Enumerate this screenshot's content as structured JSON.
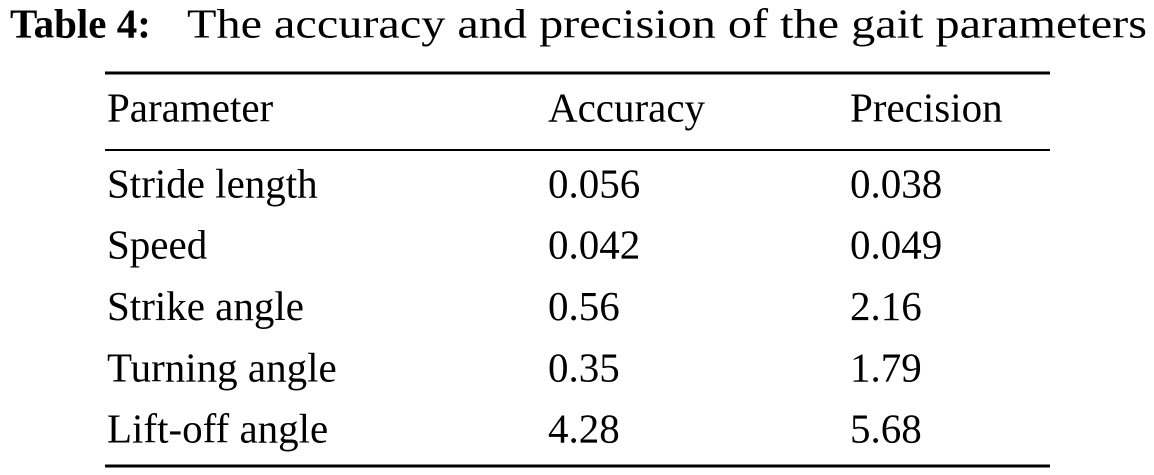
{
  "caption": {
    "label": "Table 4:",
    "text": "The accuracy and precision of the gait parameters"
  },
  "table": {
    "header": [
      "Parameter",
      "Accuracy",
      "Precision"
    ],
    "rows": [
      [
        "Stride length",
        "0.056",
        "0.038"
      ],
      [
        "Speed",
        "0.042",
        "0.049"
      ],
      [
        "Strike angle",
        "0.56",
        "2.16"
      ],
      [
        "Turning angle",
        "0.35",
        "1.79"
      ],
      [
        "Lift-off angle",
        "4.28",
        "5.68"
      ]
    ]
  }
}
